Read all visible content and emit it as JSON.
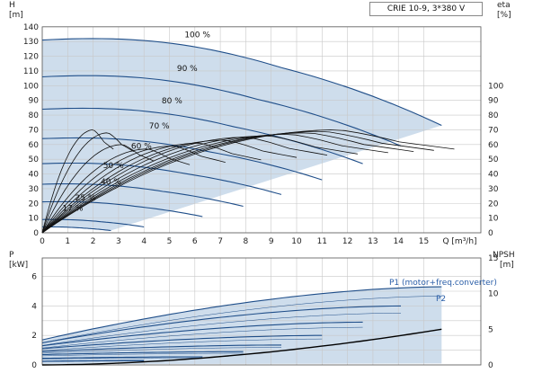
{
  "title": "CRIE 10-9, 3*380 V",
  "colors": {
    "curve": "#1f4e89",
    "envelope": "#c9d9ea",
    "eff": "#111111",
    "p1_label": "#2a5ea8",
    "grid": "#c8c8c8"
  },
  "chart_data": [
    {
      "type": "line",
      "name": "head-efficiency",
      "axis_left_unit_top": "H",
      "axis_left_unit_bottom": "[m]",
      "axis_right_unit_top": "eta",
      "axis_right_unit_bottom": "[%]",
      "xlabel": "Q [m³/h]",
      "x_ticks": [
        "0",
        "1",
        "2",
        "3",
        "4",
        "5",
        "6",
        "7",
        "8",
        "9",
        "10",
        "11",
        "12",
        "13",
        "14",
        "15"
      ],
      "x_tick_q": "Q [m³/h]",
      "ylim": [
        0,
        140
      ],
      "xlim": [
        0,
        15.6
      ],
      "y_ticks_left": [
        "0",
        "10",
        "20",
        "30",
        "40",
        "50",
        "60",
        "70",
        "80",
        "90",
        "100",
        "110",
        "120",
        "130",
        "140"
      ],
      "y_ticks_right": [
        "0",
        "10",
        "20",
        "30",
        "40",
        "50",
        "60",
        "70",
        "80",
        "90",
        "100"
      ],
      "grid": true,
      "speed_labels": [
        {
          "text": "100 %",
          "q": 6.1,
          "h": 133
        },
        {
          "text": "90 %",
          "q": 5.7,
          "h": 110
        },
        {
          "text": "80 %",
          "q": 5.1,
          "h": 88
        },
        {
          "text": "70 %",
          "q": 4.6,
          "h": 71
        },
        {
          "text": "60 %",
          "q": 3.9,
          "h": 57
        },
        {
          "text": "50 %",
          "q": 2.8,
          "h": 44
        },
        {
          "text": "40 %",
          "q": 2.7,
          "h": 33
        },
        {
          "text": "25 %",
          "q": 1.7,
          "h": 22
        },
        {
          "text": "17 %",
          "q": 1.2,
          "h": 15
        }
      ],
      "series": [
        {
          "name": "100 %",
          "h0": 131,
          "qmax": 15.7,
          "hend": 73
        },
        {
          "name": "90 %",
          "h0": 106,
          "qmax": 14.1,
          "hend": 59
        },
        {
          "name": "80 %",
          "h0": 84,
          "qmax": 12.6,
          "hend": 47
        },
        {
          "name": "70 %",
          "h0": 64,
          "qmax": 11.0,
          "hend": 36
        },
        {
          "name": "60 %",
          "h0": 47,
          "qmax": 9.4,
          "hend": 26
        },
        {
          "name": "50 %",
          "h0": 33,
          "qmax": 7.9,
          "hend": 18
        },
        {
          "name": "40 %",
          "h0": 21,
          "qmax": 6.3,
          "hend": 11
        },
        {
          "name": "25 %",
          "h0": 9,
          "qmax": 4.0,
          "hend": 4
        },
        {
          "name": "17 %",
          "h0": 4,
          "qmax": 2.7,
          "hend": 1.5
        }
      ],
      "efficiency": [
        {
          "qmax": 16.2,
          "emax": 70
        },
        {
          "qmax": 15.4,
          "emax": 69
        },
        {
          "qmax": 14.6,
          "emax": 68
        },
        {
          "qmax": 13.6,
          "emax": 67
        },
        {
          "qmax": 12.4,
          "emax": 66
        },
        {
          "qmax": 11.2,
          "emax": 65
        },
        {
          "qmax": 10.0,
          "emax": 63
        },
        {
          "qmax": 8.6,
          "emax": 61
        },
        {
          "qmax": 7.2,
          "emax": 59
        },
        {
          "qmax": 5.8,
          "emax": 57
        },
        {
          "qmax": 4.4,
          "emax": 60
        },
        {
          "qmax": 3.6,
          "emax": 68
        },
        {
          "qmax": 2.8,
          "emax": 70
        }
      ]
    },
    {
      "type": "line",
      "name": "power-npsh",
      "axis_left_unit_top": "P",
      "axis_left_unit_bottom": "[kW]",
      "axis_right_unit_top": "NPSH",
      "axis_right_unit_bottom": "[m]",
      "ylim": [
        0,
        6
      ],
      "y_ticks_left": [
        "0",
        "2",
        "4",
        "6"
      ],
      "y_ticks_right": [
        "0",
        "5",
        "10",
        "15"
      ],
      "right_ylim": [
        0,
        15
      ],
      "grid": true,
      "series_labels": {
        "p1": "P1 (motor+freq.converter)",
        "p2": "P2"
      },
      "power_curves": [
        {
          "p0": 1.7,
          "qmax": 15.7,
          "pend": 5.3
        },
        {
          "p0": 1.5,
          "qmax": 14.1,
          "pend": 4.0
        },
        {
          "p0": 1.3,
          "qmax": 12.6,
          "pend": 2.9
        },
        {
          "p0": 1.1,
          "qmax": 11.0,
          "pend": 2.0
        },
        {
          "p0": 0.9,
          "qmax": 9.4,
          "pend": 1.35
        },
        {
          "p0": 0.7,
          "qmax": 7.9,
          "pend": 0.9
        },
        {
          "p0": 0.45,
          "qmax": 6.3,
          "pend": 0.55
        },
        {
          "p0": 0.25,
          "qmax": 4.0,
          "pend": 0.3
        }
      ],
      "npsh": {
        "qmax": 15.7,
        "end": 5.0
      }
    }
  ]
}
